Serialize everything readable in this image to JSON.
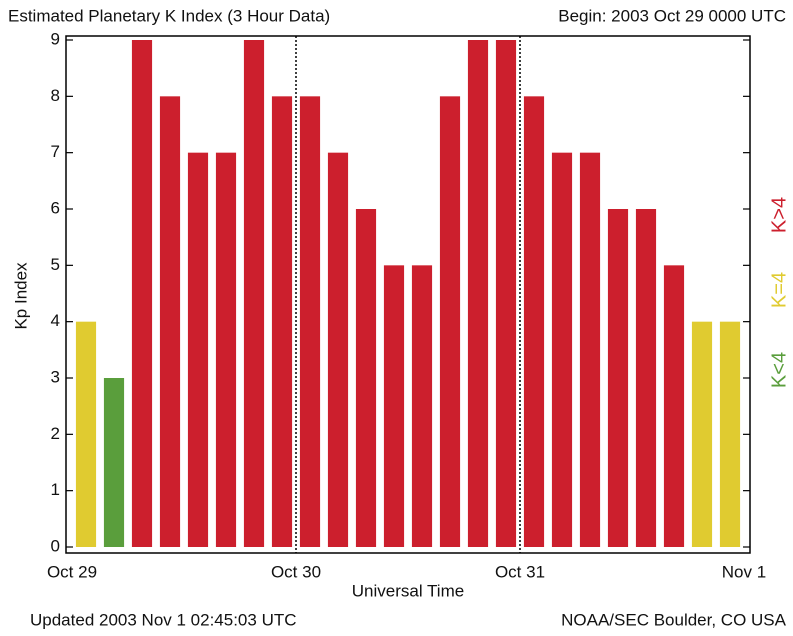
{
  "chart_data": {
    "type": "bar",
    "title": "Estimated Planetary K Index (3 Hour Data)",
    "subtitle": "Begin: 2003 Oct 29 0000 UTC",
    "y_label": "Kp Index",
    "x_label": "Universal Time",
    "footer_left": "Updated 2003 Nov 1 02:45:03 UTC",
    "footer_right": "NOAA/SEC Boulder, CO USA",
    "x": [
      0,
      3,
      6,
      9,
      12,
      15,
      18,
      21,
      24,
      27,
      30,
      33,
      36,
      39,
      42,
      45,
      48,
      51,
      54,
      57,
      60,
      63,
      66,
      69
    ],
    "values": [
      4,
      3,
      9,
      8,
      7,
      7,
      9,
      8,
      8,
      7,
      6,
      5,
      5,
      8,
      9,
      9,
      8,
      7,
      7,
      6,
      6,
      5,
      4,
      4
    ],
    "colors": [
      "#e0cb30",
      "#5a9e3c",
      "#cc1f2d",
      "#cc1f2d",
      "#cc1f2d",
      "#cc1f2d",
      "#cc1f2d",
      "#cc1f2d",
      "#cc1f2d",
      "#cc1f2d",
      "#cc1f2d",
      "#cc1f2d",
      "#cc1f2d",
      "#cc1f2d",
      "#cc1f2d",
      "#cc1f2d",
      "#cc1f2d",
      "#cc1f2d",
      "#cc1f2d",
      "#cc1f2d",
      "#cc1f2d",
      "#cc1f2d",
      "#e0cb30",
      "#e0cb30"
    ],
    "bar_width": 3,
    "xlim": [
      0,
      72
    ],
    "xticks": [
      {
        "value": 0,
        "label": "Oct 29"
      },
      {
        "value": 24,
        "label": "Oct 30"
      },
      {
        "value": 48,
        "label": "Oct 31"
      },
      {
        "value": 72,
        "label": "Nov 1"
      }
    ],
    "ylim": [
      0,
      9
    ],
    "yticks": [
      0,
      1,
      2,
      3,
      4,
      5,
      6,
      7,
      8,
      9
    ],
    "legend": [
      {
        "label": "K>4",
        "color": "#cc1f2d"
      },
      {
        "label": "K=4",
        "color": "#e0cb30"
      },
      {
        "label": "K<4",
        "color": "#5a9e3c"
      }
    ]
  }
}
